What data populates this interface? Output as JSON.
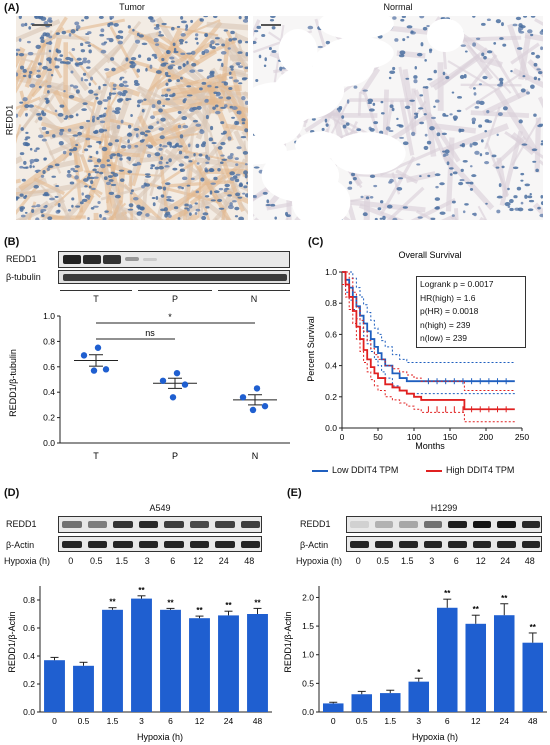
{
  "panelA": {
    "label": "(A)",
    "tumor_title": "Tumor",
    "normal_title": "Normal",
    "row_label": "REDD1"
  },
  "panelB": {
    "label": "(B)",
    "blot_rows": [
      "REDD1",
      "β-tubulin"
    ],
    "groups": [
      "T",
      "P",
      "N"
    ],
    "ylabel": "REDD1/β-tubulin",
    "sig_ns": "ns",
    "sig_star": "*",
    "chart_data": {
      "type": "scatter",
      "categories": [
        "T",
        "P",
        "N"
      ],
      "points": [
        [
          0.75,
          0.69,
          0.58,
          0.57
        ],
        [
          0.55,
          0.49,
          0.46,
          0.36
        ],
        [
          0.43,
          0.36,
          0.29,
          0.26
        ]
      ],
      "means": [
        0.65,
        0.47,
        0.34
      ],
      "sem": [
        0.045,
        0.04,
        0.04
      ],
      "ylim": [
        0.0,
        1.0
      ],
      "yticks": [
        "0.0",
        "0.2",
        "0.4",
        "0.6",
        "0.8",
        "1.0"
      ]
    }
  },
  "panelC": {
    "label": "(C)",
    "title": "Overall Survival",
    "ylabel": "Percent Survival",
    "xlabel": "Months",
    "stats": [
      "Logrank p = 0.0017",
      "HR(high) = 1.6",
      "p(HR) = 0.0018",
      "n(high) = 239",
      "n(low) = 239"
    ],
    "legend_low": "Low DDIT4 TPM",
    "legend_high": "High DDIT4 TPM",
    "color_low": "#1f5fbf",
    "color_high": "#e02020",
    "chart_data": {
      "type": "line",
      "xlim": [
        0,
        250
      ],
      "ylim": [
        0.0,
        1.0
      ],
      "xticks": [
        "0",
        "50",
        "100",
        "150",
        "200",
        "250"
      ],
      "yticks": [
        "0.0",
        "0.2",
        "0.4",
        "0.6",
        "0.8",
        "1.0"
      ],
      "series": [
        {
          "name": "Low DDIT4 TPM",
          "x": [
            0,
            5,
            10,
            15,
            20,
            25,
            30,
            35,
            40,
            45,
            50,
            55,
            60,
            70,
            80,
            90,
            100,
            110,
            130,
            160,
            240
          ],
          "y": [
            1.0,
            0.95,
            0.9,
            0.84,
            0.78,
            0.72,
            0.67,
            0.62,
            0.57,
            0.52,
            0.48,
            0.44,
            0.4,
            0.35,
            0.32,
            0.3,
            0.3,
            0.3,
            0.3,
            0.3,
            0.3
          ]
        },
        {
          "name": "High DDIT4 TPM",
          "x": [
            0,
            5,
            10,
            15,
            20,
            25,
            30,
            35,
            40,
            45,
            50,
            60,
            70,
            80,
            90,
            100,
            110,
            140,
            170,
            180,
            240
          ],
          "y": [
            1.0,
            0.92,
            0.84,
            0.75,
            0.65,
            0.57,
            0.5,
            0.44,
            0.39,
            0.35,
            0.32,
            0.28,
            0.26,
            0.24,
            0.22,
            0.2,
            0.18,
            0.18,
            0.12,
            0.12,
            0.12
          ]
        }
      ]
    }
  },
  "panelD": {
    "label": "(D)",
    "cell_line": "A549",
    "blot_rows": [
      "REDD1",
      "β-Actin"
    ],
    "hypoxia_label": "Hypoxia (h)",
    "timepoints": [
      "0",
      "0.5",
      "1.5",
      "3",
      "6",
      "12",
      "24",
      "48"
    ],
    "ylabel": "REDD1/β-Actin",
    "xlabel": "Hypoxia (h)",
    "bar_color": "#1f5fd0",
    "chart_data": {
      "type": "bar",
      "categories": [
        "0",
        "0.5",
        "1.5",
        "3",
        "6",
        "12",
        "24",
        "48"
      ],
      "values": [
        0.37,
        0.33,
        0.73,
        0.81,
        0.73,
        0.67,
        0.69,
        0.7
      ],
      "errors": [
        0.02,
        0.025,
        0.015,
        0.02,
        0.01,
        0.015,
        0.03,
        0.04
      ],
      "sig": [
        "",
        "",
        "**",
        "**",
        "**",
        "**",
        "**",
        "**"
      ],
      "ylim": [
        0.0,
        0.9
      ],
      "yticks": [
        "0.0",
        "0.2",
        "0.4",
        "0.6",
        "0.8"
      ]
    }
  },
  "panelE": {
    "label": "(E)",
    "cell_line": "H1299",
    "blot_rows": [
      "REDD1",
      "β-Actin"
    ],
    "hypoxia_label": "Hypoxia (h)",
    "timepoints": [
      "0",
      "0.5",
      "1.5",
      "3",
      "6",
      "12",
      "24",
      "48"
    ],
    "ylabel": "REDD1/β-Actin",
    "xlabel": "Hypoxia (h)",
    "bar_color": "#1f5fd0",
    "chart_data": {
      "type": "bar",
      "categories": [
        "0",
        "0.5",
        "1.5",
        "3",
        "6",
        "12",
        "24",
        "48"
      ],
      "values": [
        0.15,
        0.31,
        0.33,
        0.53,
        1.82,
        1.54,
        1.69,
        1.21
      ],
      "errors": [
        0.02,
        0.05,
        0.05,
        0.06,
        0.15,
        0.15,
        0.2,
        0.17
      ],
      "sig": [
        "",
        "",
        "",
        "*",
        "**",
        "**",
        "**",
        "**"
      ],
      "ylim": [
        0.0,
        2.2
      ],
      "yticks": [
        "0.0",
        "0.5",
        "1.0",
        "1.5",
        "2.0"
      ]
    }
  }
}
